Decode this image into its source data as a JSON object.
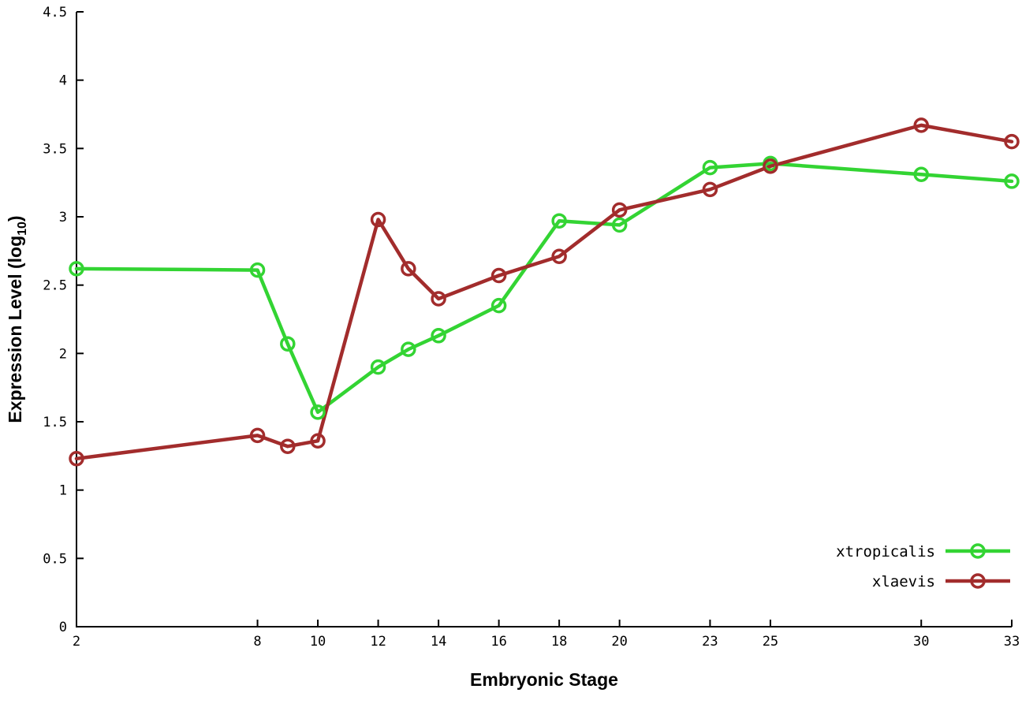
{
  "chart_data": {
    "type": "line",
    "title": "",
    "xlabel": "Embryonic Stage",
    "ylabel_prefix": "Expression Level (log",
    "ylabel_sub": "10",
    "ylabel_suffix": ")",
    "xlim": [
      2,
      33
    ],
    "ylim": [
      0,
      4.5
    ],
    "grid": false,
    "legend_position": "inside-bottom-right",
    "axis_color": "#000000",
    "background_color": "#ffffff",
    "x": [
      2,
      8,
      9,
      10,
      12,
      13,
      14,
      16,
      18,
      20,
      23,
      25,
      30,
      33
    ],
    "xticks": [
      2,
      8,
      10,
      12,
      14,
      16,
      18,
      20,
      23,
      25,
      30,
      33
    ],
    "yticks": [
      0,
      0.5,
      1,
      1.5,
      2,
      2.5,
      3,
      3.5,
      4,
      4.5
    ],
    "series": [
      {
        "name": "xtropicalis",
        "color": "#33d433",
        "marker": "open-circle",
        "values": [
          2.62,
          2.61,
          2.07,
          1.57,
          1.9,
          2.03,
          2.13,
          2.35,
          2.97,
          2.94,
          3.36,
          3.39,
          3.31,
          3.26
        ]
      },
      {
        "name": "xlaevis",
        "color": "#a22c2c",
        "marker": "open-circle",
        "values": [
          1.23,
          1.4,
          1.32,
          1.36,
          2.98,
          2.62,
          2.4,
          2.57,
          2.71,
          3.05,
          3.2,
          3.37,
          3.67,
          3.55
        ]
      }
    ]
  }
}
